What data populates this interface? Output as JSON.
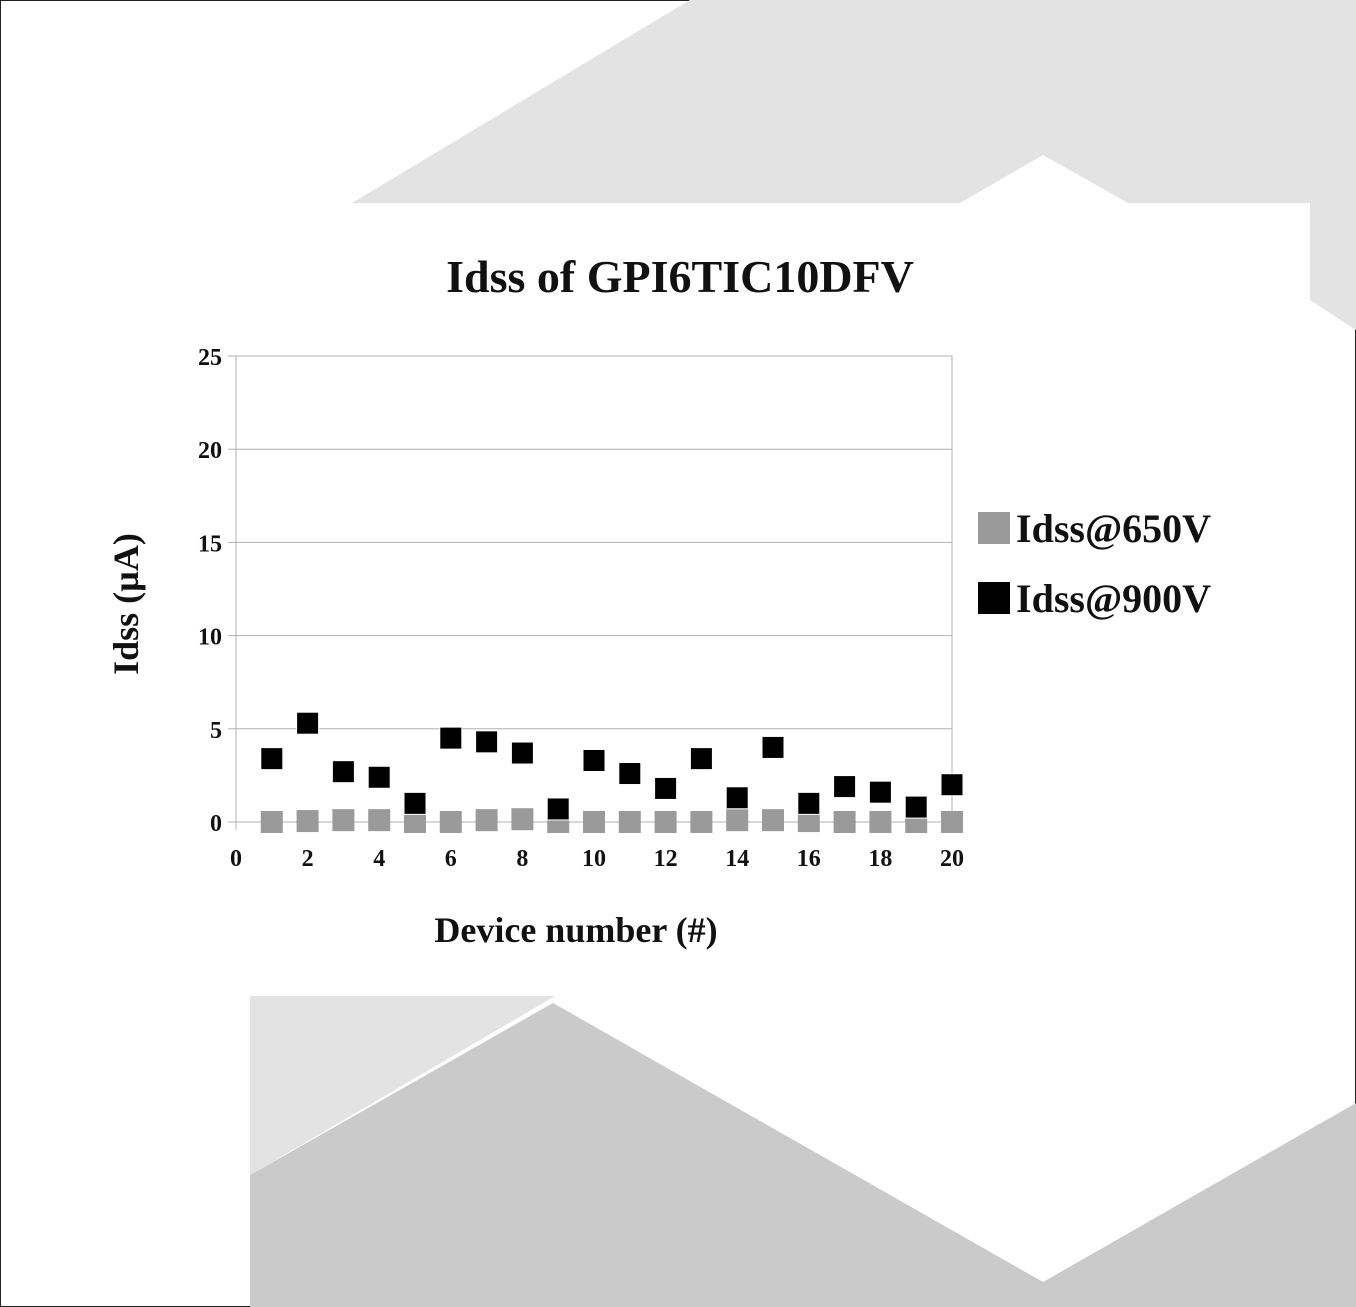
{
  "chart_data": {
    "type": "scatter",
    "title": "Idss of GPI6TIC10DFV",
    "xlabel": "Device number (#)",
    "ylabel": "Idss (µA)",
    "xlim": [
      0,
      20
    ],
    "ylim": [
      0,
      25
    ],
    "xticks": [
      0,
      2,
      4,
      6,
      8,
      10,
      12,
      14,
      16,
      18,
      20
    ],
    "yticks": [
      0,
      5,
      10,
      15,
      20,
      25
    ],
    "grid": "horizontal",
    "legend_position": "right",
    "series": [
      {
        "name": "Idss@650V",
        "color": "#9a9a9a",
        "x": [
          1,
          2,
          3,
          4,
          5,
          6,
          7,
          8,
          9,
          10,
          11,
          12,
          13,
          14,
          15,
          16,
          17,
          18,
          19,
          20
        ],
        "y": [
          0.0,
          0.05,
          0.1,
          0.1,
          0.0,
          0.0,
          0.1,
          0.15,
          0.0,
          0.0,
          0.0,
          0.0,
          0.0,
          0.1,
          0.1,
          0.05,
          0.0,
          0.0,
          0.0,
          0.0
        ]
      },
      {
        "name": "Idss@900V",
        "color": "#000000",
        "x": [
          1,
          2,
          3,
          4,
          5,
          6,
          7,
          8,
          9,
          10,
          11,
          12,
          13,
          14,
          15,
          16,
          17,
          18,
          19,
          20
        ],
        "y": [
          3.4,
          5.3,
          2.7,
          2.4,
          1.0,
          4.5,
          4.3,
          3.7,
          0.7,
          3.3,
          2.6,
          1.8,
          3.4,
          1.3,
          4.0,
          1.0,
          1.9,
          1.6,
          0.8,
          2.0
        ]
      }
    ]
  },
  "colors": {
    "background_shape_light": "#e3e3e3",
    "background_shape_dark": "#cacaca",
    "gridline": "#b0b0b0"
  }
}
